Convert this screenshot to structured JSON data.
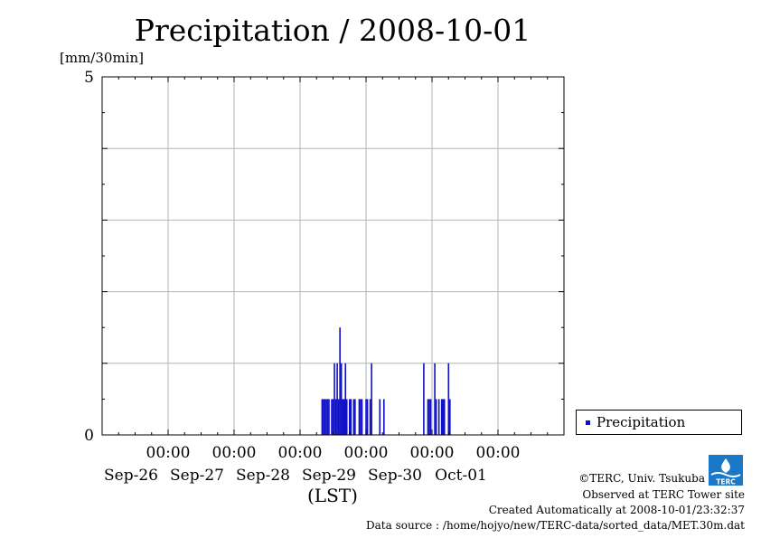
{
  "chart_data": {
    "type": "bar",
    "title": "Precipitation / 2008-10-01",
    "ylabel": "[mm/30min]",
    "xlabel": "(LST)",
    "ylim": [
      0,
      5
    ],
    "xlim": [
      "2008-09-25T00:00",
      "2008-10-02T00:00"
    ],
    "y_ticks": [
      {
        "value": 0,
        "label": "0"
      },
      {
        "value": 5,
        "label": "5"
      }
    ],
    "x_ticks": [
      {
        "time": "2008-09-26T00:00",
        "time_label": "00:00",
        "date_label": "Sep-26"
      },
      {
        "time": "2008-09-27T00:00",
        "time_label": "00:00",
        "date_label": "Sep-27"
      },
      {
        "time": "2008-09-28T00:00",
        "time_label": "00:00",
        "date_label": "Sep-28"
      },
      {
        "time": "2008-09-29T00:00",
        "time_label": "00:00",
        "date_label": "Sep-29"
      },
      {
        "time": "2008-09-30T00:00",
        "time_label": "00:00",
        "date_label": "Sep-30"
      },
      {
        "time": "2008-10-01T00:00",
        "time_label": "00:00",
        "date_label": "Oct-01"
      }
    ],
    "grid": true,
    "legend_position": "right",
    "series": [
      {
        "name": "Precipitation",
        "color": "#1010c8",
        "points": [
          {
            "t": "2008-09-28T08:00",
            "v": 0.5
          },
          {
            "t": "2008-09-28T08:30",
            "v": 0.5
          },
          {
            "t": "2008-09-28T09:00",
            "v": 0.5
          },
          {
            "t": "2008-09-28T09:30",
            "v": 0.5
          },
          {
            "t": "2008-09-28T10:00",
            "v": 0.5
          },
          {
            "t": "2008-09-28T10:30",
            "v": 0.5
          },
          {
            "t": "2008-09-28T11:30",
            "v": 0.5
          },
          {
            "t": "2008-09-28T12:00",
            "v": 0.5
          },
          {
            "t": "2008-09-28T12:30",
            "v": 1.0
          },
          {
            "t": "2008-09-28T13:00",
            "v": 0.5
          },
          {
            "t": "2008-09-28T13:30",
            "v": 1.0
          },
          {
            "t": "2008-09-28T14:00",
            "v": 0.5
          },
          {
            "t": "2008-09-28T14:30",
            "v": 1.5
          },
          {
            "t": "2008-09-28T15:00",
            "v": 1.0
          },
          {
            "t": "2008-09-28T15:30",
            "v": 0.5
          },
          {
            "t": "2008-09-28T16:00",
            "v": 0.5
          },
          {
            "t": "2008-09-28T16:30",
            "v": 1.0
          },
          {
            "t": "2008-09-28T17:00",
            "v": 0.5
          },
          {
            "t": "2008-09-28T18:00",
            "v": 0.5
          },
          {
            "t": "2008-09-28T18:30",
            "v": 0.5
          },
          {
            "t": "2008-09-28T19:30",
            "v": 0.5
          },
          {
            "t": "2008-09-28T20:00",
            "v": 0.5
          },
          {
            "t": "2008-09-28T21:30",
            "v": 0.5
          },
          {
            "t": "2008-09-28T22:00",
            "v": 0.5
          },
          {
            "t": "2008-09-28T22:30",
            "v": 0.5
          },
          {
            "t": "2008-09-29T00:00",
            "v": 0.5
          },
          {
            "t": "2008-09-29T00:30",
            "v": 0.5
          },
          {
            "t": "2008-09-29T01:30",
            "v": 0.5
          },
          {
            "t": "2008-09-29T02:00",
            "v": 1.0
          },
          {
            "t": "2008-09-29T05:00",
            "v": 0.5
          },
          {
            "t": "2008-09-29T06:30",
            "v": 0.5
          },
          {
            "t": "2008-09-29T21:00",
            "v": 1.0
          },
          {
            "t": "2008-09-29T22:30",
            "v": 0.5
          },
          {
            "t": "2008-09-29T23:00",
            "v": 0.5
          },
          {
            "t": "2008-09-29T23:30",
            "v": 0.5
          },
          {
            "t": "2008-09-30T01:00",
            "v": 1.0
          },
          {
            "t": "2008-09-30T01:30",
            "v": 0.5
          },
          {
            "t": "2008-09-30T02:30",
            "v": 0.5
          },
          {
            "t": "2008-09-30T03:30",
            "v": 0.5
          },
          {
            "t": "2008-09-30T04:00",
            "v": 0.5
          },
          {
            "t": "2008-09-30T04:30",
            "v": 0.5
          },
          {
            "t": "2008-09-30T06:00",
            "v": 1.0
          },
          {
            "t": "2008-09-30T06:30",
            "v": 0.5
          }
        ]
      }
    ]
  },
  "legend": {
    "label": "Precipitation"
  },
  "credits": {
    "copyright": "©TERC, Univ. Tsukuba",
    "observed": "Observed at TERC Tower site",
    "created": "Created Automatically at 2008-10-01/23:32:37",
    "source": "Data source : /home/hojyo/new/TERC-data/sorted_data/MET.30m.dat"
  },
  "logo": {
    "text": "TERC"
  }
}
